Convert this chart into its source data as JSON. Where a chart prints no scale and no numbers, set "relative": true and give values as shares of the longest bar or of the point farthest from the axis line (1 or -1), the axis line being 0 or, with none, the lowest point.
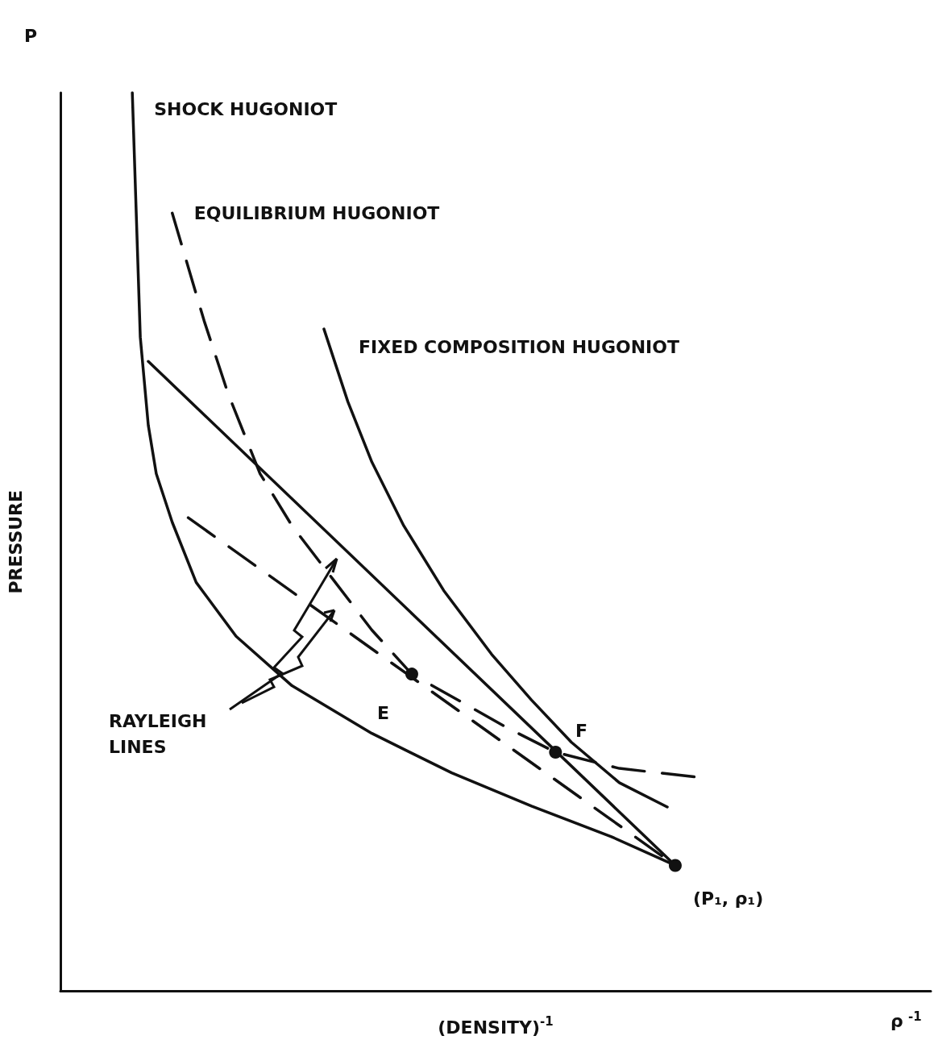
{
  "chart_data": {
    "type": "line",
    "relative": true,
    "xlabel": "(DENSITY)$^{-1}$",
    "ylabel": "PRESSURE",
    "annotations": [
      "RAYLEIGH LINES",
      "P",
      "ρ$^{-1}$",
      "E",
      "F",
      "(P₁, ρ₁)"
    ],
    "categories": [
      null,
      null,
      null,
      null,
      null,
      null,
      null,
      null,
      null,
      null,
      null,
      null,
      null,
      null,
      null,
      null,
      null,
      null,
      null,
      null,
      null,
      null,
      null,
      null,
      null,
      null,
      null,
      null,
      null,
      null,
      null,
      null,
      null,
      null,
      null,
      null,
      null,
      null,
      null,
      null,
      null,
      null,
      null,
      null,
      null,
      null,
      null,
      null,
      null,
      null,
      null,
      null,
      null,
      null,
      null,
      null,
      null,
      null,
      null,
      null,
      null,
      null,
      null,
      null,
      null,
      null,
      null,
      null,
      null,
      null,
      null,
      null,
      null,
      null,
      null,
      null,
      null,
      null,
      null,
      null,
      null,
      null,
      null,
      null,
      null,
      null,
      null,
      null,
      null,
      null,
      null,
      null,
      null,
      null,
      null,
      null,
      null,
      null,
      null,
      null,
      null,
      null,
      null,
      null,
      null,
      null,
      null,
      null,
      null,
      null
    ],
    "series": [
      {
        "name": "SHOCK HUGONIOT",
        "color": "#111111",
        "line_style": "solid",
        "marker": "none",
        "values": [
          null,
          null,
          null,
          null,
          null,
          null,
          null,
          null,
          null,
          1.0,
          0.728,
          0.63,
          0.576,
          null,
          0.522,
          null,
          null,
          0.455,
          null,
          null,
          null,
          null,
          0.395,
          null,
          null,
          null,
          null,
          null,
          null,
          0.34,
          null,
          null,
          null,
          null,
          null,
          null,
          null,
          null,
          null,
          0.287,
          null,
          null,
          null,
          null,
          null,
          null,
          null,
          null,
          null,
          0.243,
          null,
          null,
          null,
          null,
          null,
          null,
          null,
          null,
          null,
          0.206,
          null,
          null,
          null,
          null,
          null,
          null,
          null,
          null,
          null,
          0.172,
          null,
          null,
          null,
          null,
          null,
          null,
          null,
          0.14,
          null,
          null,
          null,
          null,
          null,
          null,
          null,
          null,
          null,
          null,
          null,
          null,
          null,
          null,
          null,
          null,
          null,
          null,
          null,
          null,
          null,
          null,
          null,
          null,
          null,
          null,
          null,
          null,
          null,
          null,
          null,
          null
        ]
      },
      {
        "name": "EQUILIBRIUM HUGONIOT",
        "color": "#111111",
        "line_style": "dashed",
        "marker": "none",
        "values": [
          null,
          null,
          null,
          null,
          null,
          null,
          null,
          null,
          null,
          null,
          null,
          null,
          null,
          null,
          0.866,
          null,
          null,
          null,
          0.746,
          null,
          null,
          0.665,
          null,
          null,
          null,
          0.576,
          null,
          null,
          null,
          0.518,
          null,
          null,
          null,
          null,
          0.46,
          null,
          null,
          null,
          null,
          0.402,
          null,
          null,
          null,
          null,
          0.353,
          null,
          null,
          null,
          null,
          null,
          0.323,
          null,
          null,
          null,
          null,
          null,
          0.293,
          null,
          null,
          null,
          null,
          null,
          0.266,
          null,
          null,
          null,
          null,
          null,
          null,
          null,
          0.248,
          null,
          null,
          null,
          null,
          null,
          null,
          null,
          null,
          null,
          0.238,
          null,
          null,
          null,
          null,
          null,
          null,
          null,
          null,
          null,
          null,
          null,
          null,
          null,
          null,
          null,
          null,
          null,
          null,
          null,
          null,
          null,
          null,
          null,
          null,
          null,
          null,
          null,
          null,
          null
        ]
      },
      {
        "name": "FIXED COMPOSITION HUGONIOT",
        "color": "#111111",
        "line_style": "solid",
        "marker": "none",
        "values": [
          null,
          null,
          null,
          null,
          null,
          null,
          null,
          null,
          null,
          null,
          null,
          null,
          null,
          null,
          null,
          null,
          null,
          null,
          null,
          null,
          null,
          null,
          null,
          null,
          null,
          null,
          null,
          null,
          null,
          null,
          null,
          null,
          null,
          0.737,
          null,
          null,
          0.656,
          null,
          null,
          0.589,
          null,
          null,
          null,
          0.518,
          null,
          null,
          null,
          null,
          0.446,
          null,
          null,
          null,
          null,
          null,
          0.375,
          null,
          null,
          null,
          null,
          0.324,
          null,
          null,
          null,
          null,
          0.277,
          null,
          null,
          null,
          null,
          null,
          0.232,
          null,
          null,
          null,
          null,
          null,
          0.205,
          null,
          null,
          null,
          null,
          null,
          null,
          null,
          null,
          null,
          null,
          null,
          null,
          null,
          null,
          null,
          null,
          null,
          null,
          null,
          null,
          null,
          null,
          null,
          null,
          null,
          null,
          null,
          null,
          null,
          null,
          null,
          null,
          null
        ]
      },
      {
        "color": "#111111",
        "line_style": "solid",
        "marker": "none",
        "values": [
          null,
          null,
          null,
          null,
          null,
          null,
          null,
          null,
          null,
          null,
          null,
          0.701,
          null,
          null,
          null,
          null,
          null,
          null,
          null,
          null,
          null,
          null,
          null,
          null,
          null,
          null,
          null,
          null,
          null,
          null,
          null,
          null,
          null,
          null,
          null,
          null,
          null,
          null,
          null,
          null,
          null,
          null,
          null,
          null,
          null,
          null,
          null,
          null,
          null,
          null,
          null,
          null,
          null,
          null,
          null,
          null,
          null,
          null,
          null,
          null,
          null,
          null,
          null,
          null,
          null,
          null,
          null,
          null,
          null,
          null,
          null,
          null,
          null,
          null,
          null,
          null,
          null,
          0.14,
          null,
          null,
          null,
          null,
          null,
          null,
          null,
          null,
          null,
          null,
          null,
          null,
          null,
          null,
          null,
          null,
          null,
          null,
          null,
          null,
          null,
          null,
          null,
          null,
          null,
          null,
          null,
          null,
          null,
          null,
          null,
          null
        ]
      },
      {
        "color": "#111111",
        "line_style": "dashed",
        "marker": "none",
        "values": [
          null,
          null,
          null,
          null,
          null,
          null,
          null,
          null,
          null,
          null,
          null,
          null,
          null,
          null,
          null,
          null,
          0.527,
          null,
          null,
          null,
          null,
          null,
          null,
          null,
          null,
          null,
          null,
          null,
          null,
          null,
          null,
          null,
          null,
          null,
          null,
          null,
          null,
          null,
          null,
          null,
          null,
          null,
          null,
          null,
          null,
          null,
          null,
          null,
          null,
          null,
          null,
          null,
          null,
          null,
          null,
          null,
          null,
          null,
          null,
          null,
          null,
          null,
          null,
          null,
          null,
          null,
          null,
          null,
          null,
          null,
          null,
          null,
          null,
          null,
          null,
          null,
          null,
          0.14,
          null,
          null,
          null,
          null,
          null,
          null,
          null,
          null,
          null,
          null,
          null,
          null,
          null,
          null,
          null,
          null,
          null,
          null,
          null,
          null,
          null,
          null,
          null,
          null,
          null,
          null,
          null,
          null,
          null,
          null,
          null,
          null
        ]
      },
      {
        "color": "#111111",
        "line_style": "none",
        "marker": "circle",
        "values": [
          null,
          null,
          null,
          null,
          null,
          null,
          null,
          null,
          null,
          null,
          null,
          null,
          null,
          null,
          null,
          null,
          null,
          null,
          null,
          null,
          null,
          null,
          null,
          null,
          null,
          null,
          null,
          null,
          null,
          null,
          null,
          null,
          null,
          null,
          null,
          null,
          null,
          null,
          null,
          null,
          null,
          null,
          null,
          null,
          0.353,
          null,
          null,
          null,
          null,
          null,
          null,
          null,
          null,
          null,
          null,
          null,
          null,
          null,
          null,
          null,
          null,
          null,
          0.266,
          null,
          null,
          null,
          null,
          null,
          null,
          null,
          null,
          null,
          null,
          null,
          null,
          null,
          null,
          0.14,
          null,
          null,
          null,
          null,
          null,
          null,
          null,
          null,
          null,
          null,
          null,
          null,
          null,
          null,
          null,
          null,
          null,
          null,
          null,
          null,
          null,
          null,
          null,
          null,
          null,
          null,
          null,
          null,
          null,
          null,
          null,
          null
        ]
      }
    ]
  }
}
